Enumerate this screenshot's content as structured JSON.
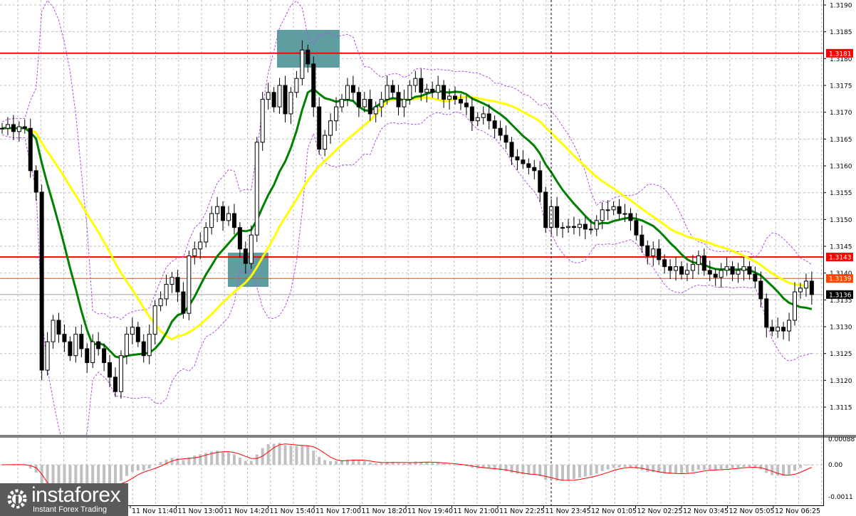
{
  "chart_data": {
    "type": "candlestick",
    "title": "",
    "price_axis": {
      "ticks": [
        "1.3190",
        "1.3185",
        "1.3180",
        "1.3175",
        "1.3170",
        "1.3165",
        "1.3160",
        "1.3155",
        "1.3150",
        "1.3145",
        "1.3140",
        "1.3135",
        "1.3130",
        "1.3125",
        "1.3120",
        "1.3115"
      ],
      "range": [
        1.3108,
        1.3192
      ]
    },
    "time_axis": {
      "ticks": [
        "11 Nov 11:40",
        "11 Nov 13:00",
        "11 Nov 14:20",
        "11 Nov 15:40",
        "11 Nov 17:00",
        "11 Nov 18:20",
        "11 Nov 19:40",
        "11 Nov 21:00",
        "11 Nov 22:25",
        "11 Nov 23:45",
        "12 Nov 01:05",
        "12 Nov 02:25",
        "12 Nov 03:45",
        "12 Nov 05:05",
        "12 Nov 06:25"
      ]
    },
    "closes": [
      1.3167,
      1.31677,
      1.31664,
      1.31673,
      1.3167,
      1.31591,
      1.31551,
      1.31219,
      1.31272,
      1.31312,
      1.31286,
      1.31272,
      1.31246,
      1.31286,
      1.31259,
      1.31233,
      1.31272,
      1.31259,
      1.31233,
      1.31206,
      1.31179,
      1.31246,
      1.31286,
      1.31299,
      1.31272,
      1.31246,
      1.31286,
      1.31339,
      1.31352,
      1.31379,
      1.31392,
      1.31365,
      1.31325,
      1.31432,
      1.31445,
      1.31458,
      1.31485,
      1.31511,
      1.31524,
      1.31498,
      1.31511,
      1.31485,
      1.31445,
      1.31418,
      1.31471,
      1.31644,
      1.31724,
      1.31737,
      1.3171,
      1.3175,
      1.31697,
      1.31737,
      1.31763,
      1.31816,
      1.3179,
      1.3171,
      1.31631,
      1.31657,
      1.31684,
      1.3171,
      1.31724,
      1.3175,
      1.31737,
      1.3171,
      1.31724,
      1.31697,
      1.3171,
      1.31724,
      1.3175,
      1.31737,
      1.3171,
      1.31724,
      1.3175,
      1.31763,
      1.31737,
      1.31743,
      1.31737,
      1.3175,
      1.31724,
      1.3173,
      1.31724,
      1.31717,
      1.3171,
      1.31684,
      1.3169,
      1.31697,
      1.31684,
      1.3167,
      1.31657,
      1.31644,
      1.31617,
      1.31611,
      1.31604,
      1.31597,
      1.31591,
      1.31551,
      1.31485,
      1.31524,
      1.31485,
      1.31485,
      1.31487,
      1.31485,
      1.31491,
      1.31482,
      1.31482,
      1.31498,
      1.31518,
      1.31518,
      1.31524,
      1.31511,
      1.31511,
      1.31498,
      1.31471,
      1.31451,
      1.31432,
      1.31445,
      1.31425,
      1.31412,
      1.31405,
      1.31412,
      1.31398,
      1.31405,
      1.31416,
      1.31432,
      1.31405,
      1.31398,
      1.31392,
      1.31405,
      1.31412,
      1.31398,
      1.31405,
      1.31412,
      1.31398,
      1.31385,
      1.31352,
      1.31299,
      1.31292,
      1.31299,
      1.31292,
      1.31312,
      1.31365,
      1.31372,
      1.31385,
      1.3136
    ],
    "levels": [
      {
        "label": "1.3181",
        "value": 1.3181,
        "color": "#ff0000"
      },
      {
        "label": "1.3143",
        "value": 1.3143,
        "color": "#ff0000"
      },
      {
        "label": "1.3139",
        "value": 1.3139,
        "color": "#ff4500"
      }
    ],
    "current_price": {
      "label": "1.3136",
      "value": 1.3136,
      "color": "#000000"
    },
    "moving_average_colors": {
      "fast": "#008000",
      "slow": "#ffff00"
    },
    "bands_color": "#b050e0",
    "highlight_box_color": "#5f9ea0",
    "indicator_panel": {
      "ticks": [
        "0.00088",
        "0.00",
        "-0.0011"
      ],
      "range": [
        -0.0011,
        0.00088
      ],
      "histogram_color": "#c0c0c0",
      "signal_color": "#ff0000"
    },
    "grid": true
  },
  "logo": {
    "name": "instaforex",
    "tagline": "Instant Forex Trading"
  }
}
